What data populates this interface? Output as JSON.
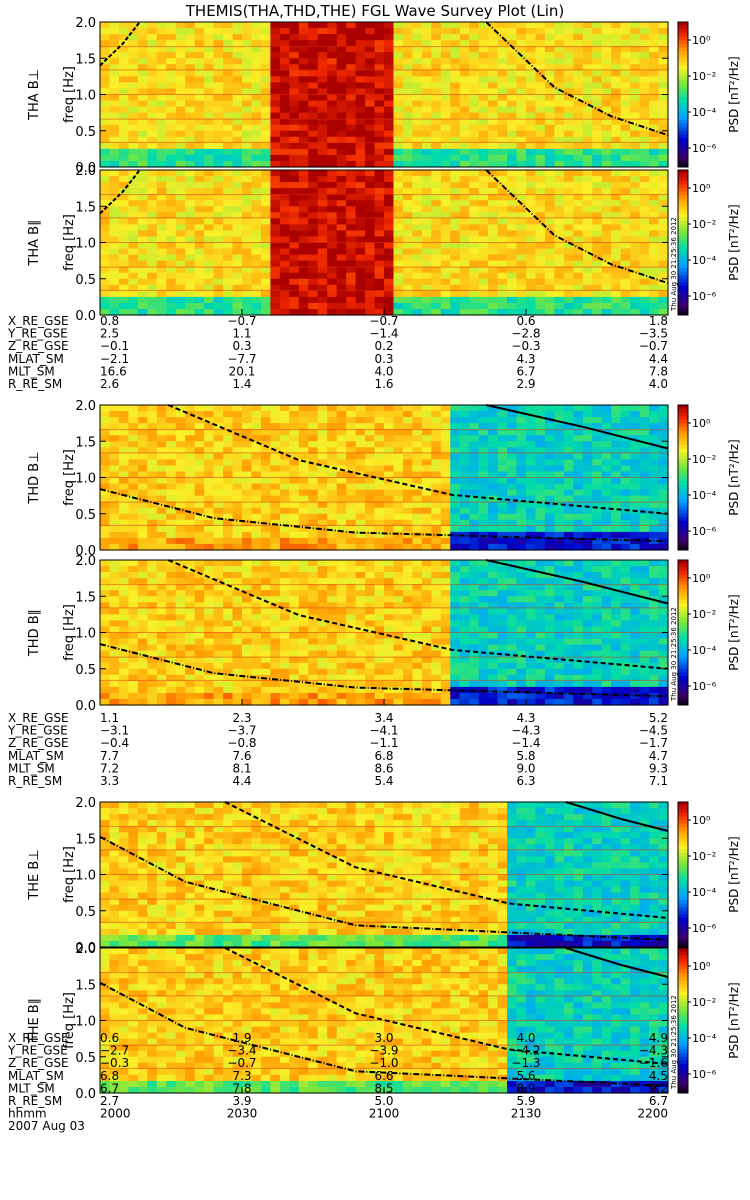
{
  "title": "THEMIS(THA,THD,THE) FGL Wave Survey Plot (Lin)",
  "chart_data": {
    "type": "heatmap",
    "freq_axis": {
      "label": "freq [Hz]",
      "ylim": [
        0,
        2.0
      ],
      "ticks": [
        "0.0",
        "0.5",
        "1.0",
        "1.5",
        "2.0"
      ]
    },
    "colorbar": {
      "label": "PSD [nT²/Hz]",
      "ticks": [
        "10⁰",
        "10⁻²",
        "10⁻⁴",
        "10⁻⁶"
      ]
    },
    "timestamp": "Thu Aug 30 21:25:36 2012",
    "time_axis": {
      "xlim": [
        2000,
        2200
      ]
    },
    "probes": [
      {
        "id": "THA",
        "panels": [
          {
            "label": "THA B⊥",
            "gap": [
              0.305,
              0.525
            ]
          },
          {
            "label": "THA B∥",
            "gap": [
              0.305,
              0.525
            ]
          }
        ],
        "ephemeris": [
          {
            "name": "X_RE_GSE",
            "values": [
              "0.8",
              "−0.7",
              "−0.7",
              "0.6",
              "1.8"
            ]
          },
          {
            "name": "Y_RE_GSE",
            "values": [
              "2.5",
              "1.1",
              "−1.4",
              "−2.8",
              "−3.5"
            ]
          },
          {
            "name": "Z_RE_GSE",
            "values": [
              "−0.1",
              "0.3",
              "0.2",
              "−0.3",
              "−0.7"
            ]
          },
          {
            "name": "MLAT_SM",
            "values": [
              "−2.1",
              "−7.7",
              "0.3",
              "4.3",
              "4.4"
            ]
          },
          {
            "name": "MLT_SM",
            "values": [
              "16.6",
              "20.1",
              "4.0",
              "6.7",
              "7.8"
            ]
          },
          {
            "name": "R_RE_SM",
            "values": [
              "2.6",
              "1.4",
              "1.6",
              "2.9",
              "4.0"
            ]
          }
        ]
      },
      {
        "id": "THD",
        "panels": [
          {
            "label": "THD B⊥"
          },
          {
            "label": "THD B∥"
          }
        ],
        "ephemeris": [
          {
            "name": "X_RE_GSE",
            "values": [
              "1.1",
              "2.3",
              "3.4",
              "4.3",
              "5.2"
            ]
          },
          {
            "name": "Y_RE_GSE",
            "values": [
              "−3.1",
              "−3.7",
              "−4.1",
              "−4.3",
              "−4.5"
            ]
          },
          {
            "name": "Z_RE_GSE",
            "values": [
              "−0.4",
              "−0.8",
              "−1.1",
              "−1.4",
              "−1.7"
            ]
          },
          {
            "name": "MLAT_SM",
            "values": [
              "7.7",
              "7.6",
              "6.8",
              "5.8",
              "4.7"
            ]
          },
          {
            "name": "MLT_SM",
            "values": [
              "7.2",
              "8.1",
              "8.6",
              "9.0",
              "9.3"
            ]
          },
          {
            "name": "R_RE_SM",
            "values": [
              "3.3",
              "4.4",
              "5.4",
              "6.3",
              "7.1"
            ]
          }
        ]
      },
      {
        "id": "THE",
        "panels": [
          {
            "label": "THE B⊥"
          },
          {
            "label": "THE B∥"
          }
        ],
        "ephemeris": [
          {
            "name": "X_RE_GSE",
            "values": [
              "0.6",
              "1.9",
              "3.0",
              "4.0",
              "4.9"
            ]
          },
          {
            "name": "Y_RE_GSE",
            "values": [
              "−2.7",
              "−3.4",
              "−3.9",
              "−4.2",
              "−4.3"
            ]
          },
          {
            "name": "Z_RE_GSE",
            "values": [
              "−0.3",
              "−0.7",
              "−1.0",
              "−1.3",
              "−1.6"
            ]
          },
          {
            "name": "MLAT_SM",
            "values": [
              "6.8",
              "7.3",
              "6.6",
              "5.6",
              "4.5"
            ]
          },
          {
            "name": "MLT_SM",
            "values": [
              "6.7",
              "7.8",
              "8.5",
              "8.9",
              "9.2"
            ]
          },
          {
            "name": "R_RE_SM",
            "values": [
              "2.7",
              "3.9",
              "5.0",
              "5.9",
              "6.7"
            ]
          },
          {
            "name": "hhmm",
            "values": [
              "2000",
              "2030",
              "2100",
              "2130",
              "2200"
            ]
          }
        ]
      }
    ],
    "date_label": "2007 Aug 03"
  }
}
